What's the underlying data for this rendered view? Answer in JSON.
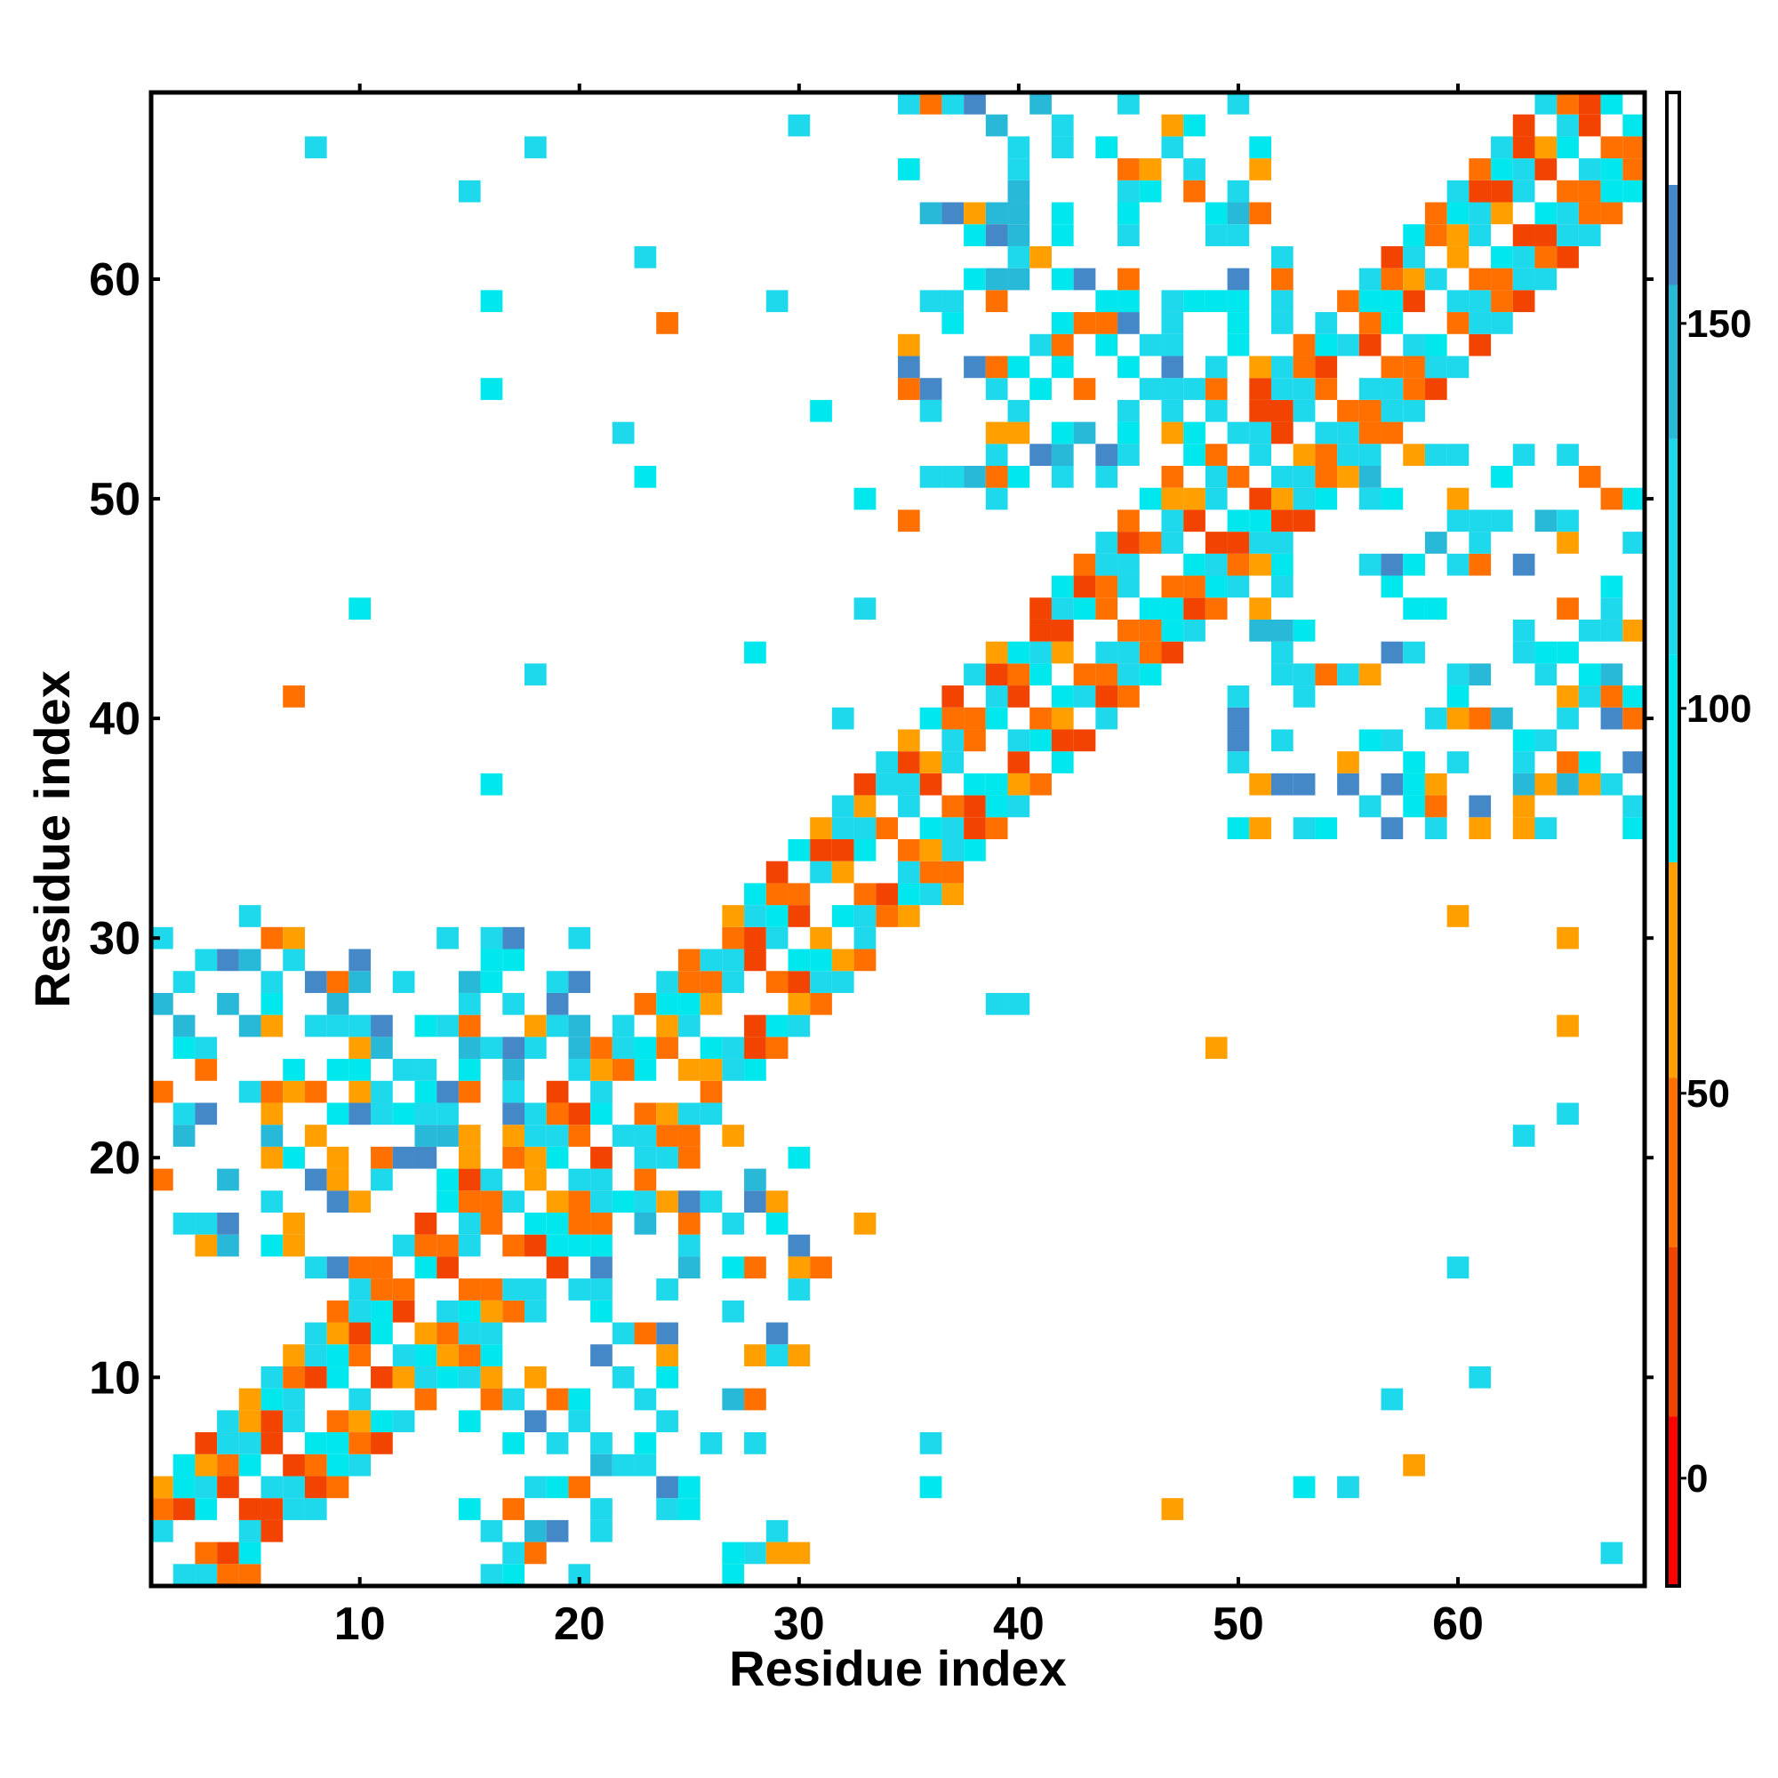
{
  "chart_data": {
    "type": "heatmap",
    "title": "",
    "xlabel": "Residue index",
    "ylabel": "Residue index",
    "xlim": [
      0.5,
      68.5
    ],
    "ylim": [
      0.5,
      68.5
    ],
    "x_ticks": [
      10,
      20,
      30,
      40,
      50,
      60
    ],
    "y_ticks": [
      10,
      20,
      30,
      40,
      50,
      60
    ],
    "colorbar": {
      "range": [
        -14,
        180
      ],
      "ticks": [
        0,
        50,
        100,
        150
      ],
      "bands": [
        {
          "from": -14,
          "to": 8,
          "color": "#ff0000"
        },
        {
          "from": 8,
          "to": 30,
          "color": "#f24400"
        },
        {
          "from": 30,
          "to": 52,
          "color": "#ff7000"
        },
        {
          "from": 52,
          "to": 80,
          "color": "#ffa000"
        },
        {
          "from": 80,
          "to": 107,
          "color": "#00e8ee"
        },
        {
          "from": 107,
          "to": 135,
          "color": "#1ed8ec"
        },
        {
          "from": 135,
          "to": 155,
          "color": "#28b8d8"
        },
        {
          "from": 155,
          "to": 168,
          "color": "#4488c8"
        },
        {
          "from": 168,
          "to": 180,
          "color": "#ffffff"
        }
      ]
    },
    "cell_values": {
      "diagonal_band": "values along |i-j|<=4 alternate between ~20-60 and ~90-130",
      "off_diagonal_regions": [
        {
          "x_range": [
            1,
            20
          ],
          "y_range": [
            15,
            30
          ],
          "typical": 120
        },
        {
          "x_range": [
            15,
            30
          ],
          "y_range": [
            1,
            12
          ],
          "typical": 120
        },
        {
          "x_range": [
            36,
            52
          ],
          "y_range": [
            50,
            66
          ],
          "typical": 120
        },
        {
          "x_range": [
            50,
            68
          ],
          "y_range": [
            35,
            50
          ],
          "typical": 120
        }
      ]
    },
    "grid": false,
    "legend": "colorbar right"
  }
}
